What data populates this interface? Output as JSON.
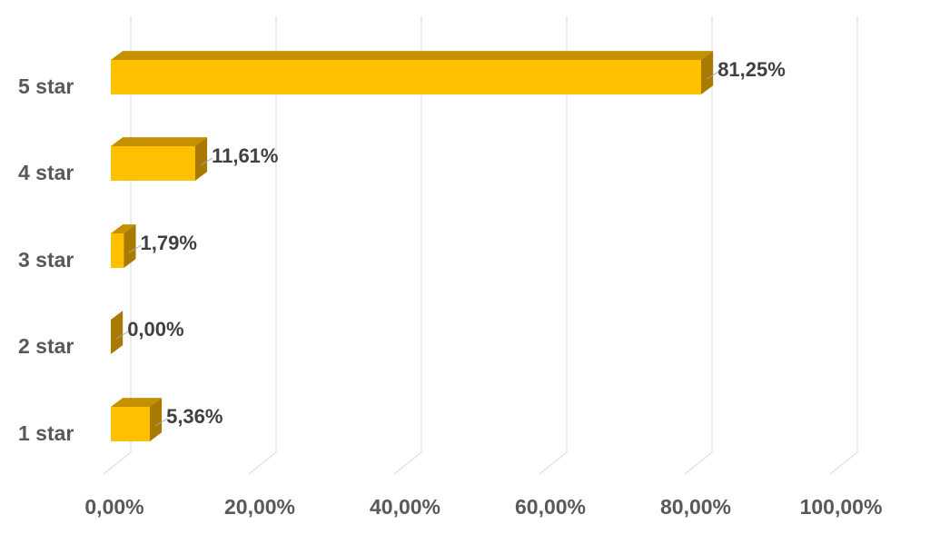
{
  "chart_data": {
    "type": "bar",
    "orientation": "horizontal",
    "style": "3d",
    "categories": [
      "5 star",
      "4 star",
      "3 star",
      "2 star",
      "1 star"
    ],
    "values": [
      81.25,
      11.61,
      1.79,
      0.0,
      5.36
    ],
    "data_labels": [
      "81,25%",
      "11,61%",
      "1,79%",
      "0,00%",
      "5,36%"
    ],
    "x_ticks": [
      "0,00%",
      "20,00%",
      "40,00%",
      "60,00%",
      "80,00%",
      "100,00%"
    ],
    "xlim": [
      0,
      100
    ],
    "grid": true,
    "legend": "none",
    "title": "",
    "xlabel": "",
    "ylabel": ""
  },
  "colors": {
    "bar_front": "#FFC000",
    "bar_top": "#C59000",
    "bar_side": "#A87B00",
    "gridline": "#d9d9d9",
    "label_text": "#595959",
    "value_text": "#404040"
  }
}
